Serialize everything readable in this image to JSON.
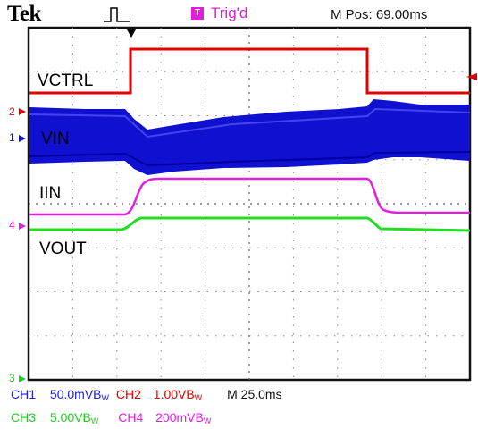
{
  "header": {
    "brand": "Tek",
    "trigger_badge": "T",
    "trigger_status": "Trig'd",
    "position": "M Pos: 69.00ms"
  },
  "traces": {
    "vctrl": "VCTRL",
    "vin": "VIN",
    "iin": "IIN",
    "vout": "VOUT"
  },
  "markers": {
    "ch2": "2",
    "ch1": "1",
    "ch4": "4",
    "ch3": "3"
  },
  "readout": {
    "ch1_name": "CH1",
    "ch1_scale": "50.0mV",
    "ch2_name": "CH2",
    "ch2_scale": "1.00V",
    "ch3_name": "CH3",
    "ch3_scale": "5.00V",
    "ch4_name": "CH4",
    "ch4_scale": "200mV",
    "bw_mark": "B",
    "bw_sub": "W",
    "timebase": "M 25.0ms"
  },
  "colors": {
    "ch1": "#1a1adc",
    "ch2": "#e60000",
    "ch3": "#22dd22",
    "ch4": "#e020e0",
    "grid": "#8a8a8a"
  }
}
